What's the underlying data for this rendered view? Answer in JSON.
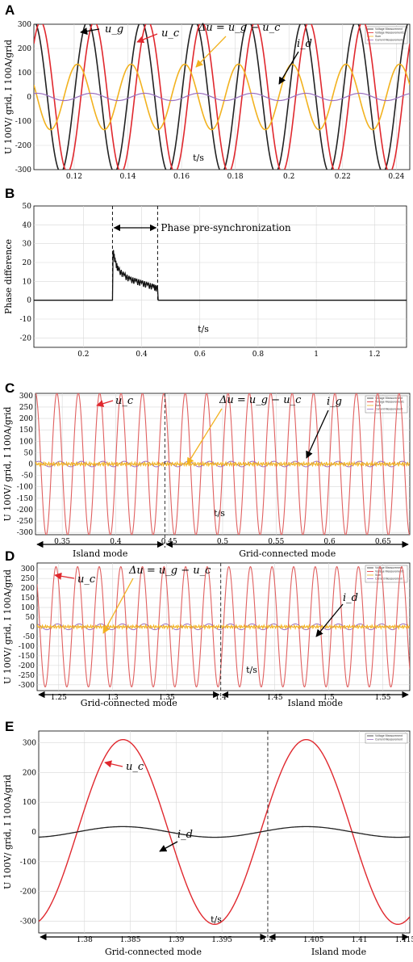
{
  "colors": {
    "ug": "#222222",
    "uc": "#e0282e",
    "uc_light": "#e06060",
    "du": "#f2b21f",
    "id": "#9a6fc0",
    "grid": "#d8d8d8",
    "arrow_red": "#e0282e",
    "arrow_yellow": "#f2b21f",
    "arrow_black": "#000000"
  },
  "chart_data": [
    {
      "panel": "A",
      "type": "line",
      "ylabel": "U 100V/ grid, I 100A/grid",
      "xlabel": "t/s",
      "xlim": [
        0.105,
        0.245
      ],
      "ylim": [
        -300,
        300
      ],
      "xticks": [
        "0.12",
        "0.14",
        "0.16",
        "0.18",
        "0.2",
        "0.22",
        "0.24"
      ],
      "yticks": [
        "300",
        "200",
        "100",
        "0",
        "-100",
        "-200",
        "-300"
      ],
      "legend": [
        "Voltage Measurement",
        "Voltage Measurement1",
        "Sum",
        "Current Measurement"
      ],
      "legend_position": "top-right",
      "series": [
        {
          "key": "ug",
          "label": "u_g",
          "waveform": "sine",
          "frequency_hz": 50,
          "amplitude": 311,
          "phase_shift_s": 0.0
        },
        {
          "key": "uc",
          "label": "u_c",
          "waveform": "sine",
          "frequency_hz": 50,
          "amplitude": 311,
          "phase_shift_s": 0.0025
        },
        {
          "key": "du",
          "label": "Δu = u_g − u_c",
          "waveform": "sine",
          "frequency_hz": 50,
          "amplitude": 135,
          "phase_shift_s": -0.0038
        },
        {
          "key": "id",
          "label": "i_d",
          "waveform": "sine",
          "frequency_hz": 50,
          "amplitude": 15,
          "phase_shift_s": 0.0013
        }
      ],
      "annotations": [
        "u_g",
        "u_c",
        "Δu = u_g − u_c",
        "i_d"
      ]
    },
    {
      "panel": "B",
      "type": "line",
      "ylabel": "Phase difference",
      "xlabel": "t/s",
      "xlim": [
        0.03,
        1.31
      ],
      "ylim": [
        -25,
        50
      ],
      "xticks": [
        "0.2",
        "0.4",
        "0.6",
        "0.8",
        "1",
        "1.2"
      ],
      "yticks": [
        "50",
        "40",
        "30",
        "20",
        "10",
        "0",
        "-10",
        "-20"
      ],
      "step_series": {
        "key": "phase",
        "start_t": 0.3,
        "end_t": 0.455,
        "points": [
          [
            0.3,
            0
          ],
          [
            0.302,
            26
          ],
          [
            0.31,
            20
          ],
          [
            0.32,
            16
          ],
          [
            0.34,
            13
          ],
          [
            0.36,
            11
          ],
          [
            0.38,
            10
          ],
          [
            0.4,
            9
          ],
          [
            0.42,
            8
          ],
          [
            0.44,
            7
          ],
          [
            0.455,
            6
          ],
          [
            0.457,
            0
          ]
        ]
      },
      "marker_lines": [
        0.3,
        0.455
      ],
      "annotations": [
        "Phase pre-synchronization"
      ]
    },
    {
      "panel": "C",
      "type": "line",
      "ylabel": "U 100V/ grid, I 100A/grid",
      "xlabel": "t/s",
      "xlim": [
        0.325,
        0.675
      ],
      "ylim": [
        -310,
        310
      ],
      "xticks": [
        "0.35",
        "0.4",
        "0.45",
        "0.5",
        "0.55",
        "0.6",
        "0.65"
      ],
      "yticks": [
        "300",
        "250",
        "200",
        "150",
        "100",
        "50",
        "0",
        "-50",
        "-100",
        "-150",
        "-200",
        "-250",
        "-300"
      ],
      "switch_t": 0.446,
      "legend": [
        "Voltage Measurement",
        "Voltage Measurement1",
        "Sum",
        "Current Measurement"
      ],
      "legend_position": "top-right",
      "series": [
        {
          "key": "uc",
          "label": "u_c",
          "waveform": "sine",
          "frequency_hz": 50,
          "amplitude": 311
        },
        {
          "key": "du",
          "label": "Δu = u_g − u_c",
          "waveform": "noise",
          "amplitude": 10
        },
        {
          "key": "ig",
          "label": "i_g",
          "waveform": "sine",
          "frequency_hz": 50,
          "amplitude": 12
        }
      ],
      "modes": [
        {
          "label": "Island mode",
          "from": 0.325,
          "to": 0.446
        },
        {
          "label": "Grid-connected mode",
          "from": 0.446,
          "to": 0.675
        }
      ],
      "annotations": [
        "u_c",
        "Δu = u_g − u_c",
        "i_g"
      ]
    },
    {
      "panel": "D",
      "type": "line",
      "ylabel": "U 100V/ grid, I 100A/grid",
      "xlabel": "t/s",
      "xlim": [
        1.23,
        1.575
      ],
      "ylim": [
        -330,
        330
      ],
      "xticks": [
        "1.25",
        "1.3",
        "1.35",
        "1.4",
        "1.45",
        "1.5",
        "1.55"
      ],
      "yticks": [
        "300",
        "250",
        "200",
        "150",
        "100",
        "50",
        "0",
        "-50",
        "-100",
        "-150",
        "-200",
        "-250",
        "-300"
      ],
      "switch_t": 1.4,
      "legend": [
        "Voltage Measurement",
        "Voltage Measurement1",
        "Sum",
        "Current Measurement"
      ],
      "legend_position": "top-right",
      "series": [
        {
          "key": "uc",
          "label": "u_c",
          "waveform": "sine",
          "frequency_hz": 50,
          "amplitude": 311
        },
        {
          "key": "du",
          "label": "Δu = u_g − u_c",
          "waveform": "noise",
          "amplitude": 10
        },
        {
          "key": "id",
          "label": "i_d",
          "waveform": "sine",
          "frequency_hz": 50,
          "amplitude": 15
        }
      ],
      "modes": [
        {
          "label": "Grid-connected mode",
          "from": 1.23,
          "to": 1.4
        },
        {
          "label": "Island mode",
          "from": 1.4,
          "to": 1.575
        }
      ],
      "annotations": [
        "u_c",
        "Δu = u_g − u_c",
        "i_d"
      ]
    },
    {
      "panel": "E",
      "type": "line",
      "ylabel": "U 100V/ grid, I 100A/grid",
      "xlabel": "t/s",
      "xlim": [
        1.375,
        1.4155
      ],
      "ylim": [
        -340,
        340
      ],
      "xticks": [
        "1.38",
        "1.385",
        "1.39",
        "1.395",
        "1.4",
        "1.405",
        "1.41",
        "1.415"
      ],
      "yticks": [
        "300",
        "200",
        "100",
        "0",
        "-100",
        "-200",
        "-300"
      ],
      "switch_t": 1.4,
      "legend": [
        "Voltage Measurement",
        "Current Measurement"
      ],
      "legend_position": "top-right",
      "series": [
        {
          "key": "uc",
          "label": "u_c",
          "waveform": "sine",
          "frequency_hz": 50,
          "amplitude": 311,
          "phase_shift_s": 0.0005
        },
        {
          "key": "id",
          "label": "i_d",
          "waveform": "sine",
          "frequency_hz": 50,
          "amplitude": 18,
          "phase_shift_s": 0.0005
        }
      ],
      "modes": [
        {
          "label": "Grid-connected mode",
          "from": 1.375,
          "to": 1.4
        },
        {
          "label": "Island mode",
          "from": 1.4,
          "to": 1.4155
        }
      ],
      "annotations": [
        "u_c",
        "i_d"
      ]
    }
  ]
}
